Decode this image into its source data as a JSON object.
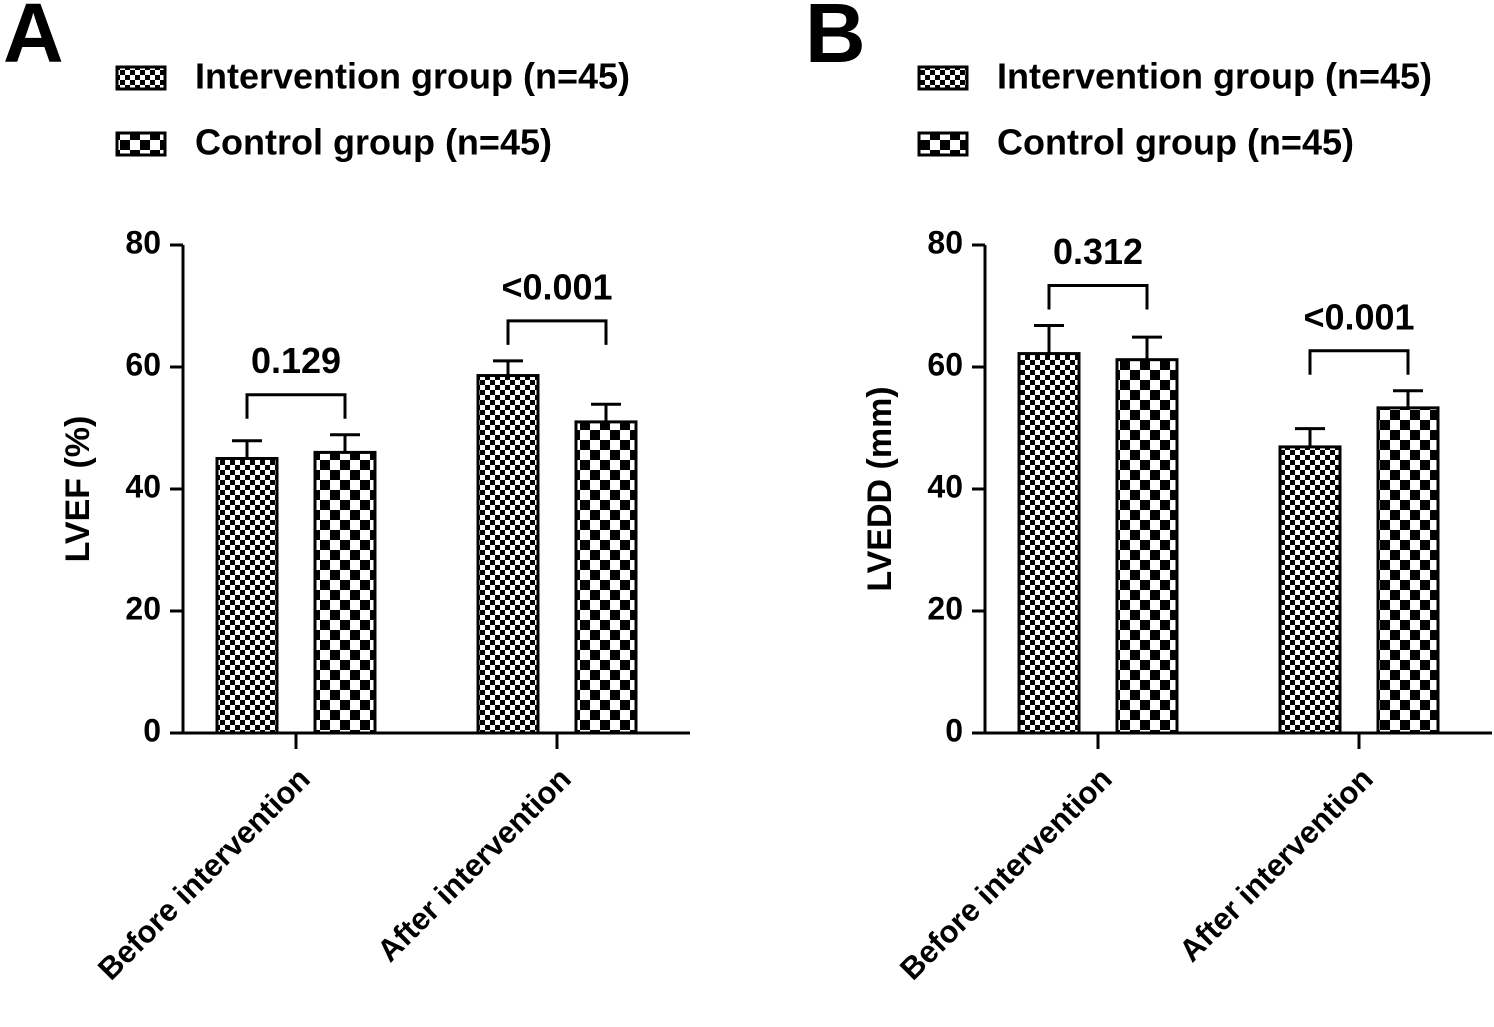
{
  "chart_data": [
    {
      "type": "bar",
      "panel_label": "A",
      "ylabel": "LVEF (%)",
      "categories": [
        "Before intervention",
        "After intervention"
      ],
      "series": [
        {
          "name": "Intervention group (n=45)",
          "color": "#000000",
          "pattern": "fine-checker",
          "values": [
            45,
            58.6
          ],
          "errors": [
            2.9,
            2.4
          ]
        },
        {
          "name": "Control group (n=45)",
          "color": "#000000",
          "pattern": "coarse-checker",
          "values": [
            46,
            51
          ],
          "errors": [
            2.9,
            2.9
          ]
        }
      ],
      "p_values": [
        "0.129",
        "<0.001"
      ],
      "ylim": [
        0,
        80
      ],
      "yticks": [
        0,
        20,
        40,
        60,
        80
      ]
    },
    {
      "type": "bar",
      "panel_label": "B",
      "ylabel": "LVEDD (mm)",
      "categories": [
        "Before intervention",
        "After intervention"
      ],
      "series": [
        {
          "name": "Intervention group (n=45)",
          "color": "#000000",
          "pattern": "fine-checker",
          "values": [
            62.2,
            46.9
          ],
          "errors": [
            4.6,
            3
          ]
        },
        {
          "name": "Control group (n=45)",
          "color": "#000000",
          "pattern": "coarse-checker",
          "values": [
            61.2,
            53.3
          ],
          "errors": [
            3.7,
            2.8
          ]
        }
      ],
      "p_values": [
        "0.312",
        "<0.001"
      ],
      "ylim": [
        0,
        80
      ],
      "yticks": [
        0,
        20,
        40,
        60,
        80
      ]
    }
  ]
}
